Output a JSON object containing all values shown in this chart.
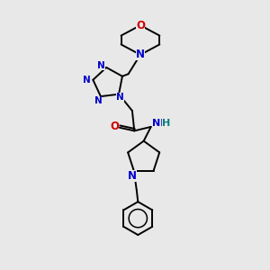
{
  "background_color": "#e8e8e8",
  "N_color": "#0000cc",
  "O_color": "#cc0000",
  "H_color": "#008080",
  "bond_color": "#000000",
  "bond_width": 1.4,
  "figsize": [
    3.0,
    3.0
  ],
  "dpi": 100,
  "xlim": [
    0,
    10
  ],
  "ylim": [
    0,
    10
  ]
}
